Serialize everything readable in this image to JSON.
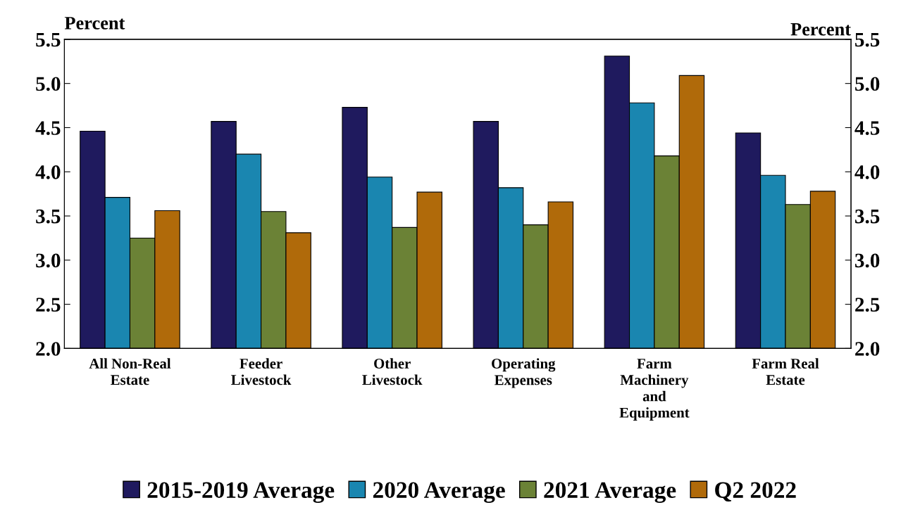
{
  "chart_data": {
    "type": "bar",
    "ylabel": "Percent",
    "y2label": "Percent",
    "categories": [
      "All Non-Real\nEstate",
      "Feeder\nLivestock",
      "Other\nLivestock",
      "Operating\nExpenses",
      "Farm\nMachinery\nand\nEquipment",
      "Farm Real\nEstate"
    ],
    "series": [
      {
        "name": "2015-2019 Average",
        "color": "#1f1a5e",
        "values": [
          4.46,
          4.57,
          4.73,
          4.57,
          5.31,
          4.44
        ]
      },
      {
        "name": "2020 Average",
        "color": "#1a86b0",
        "values": [
          3.71,
          4.2,
          3.94,
          3.82,
          4.78,
          3.96
        ]
      },
      {
        "name": "2021 Average",
        "color": "#6b8236",
        "values": [
          3.25,
          3.55,
          3.37,
          3.4,
          4.18,
          3.63
        ]
      },
      {
        "name": "Q2 2022",
        "color": "#b06a0a",
        "values": [
          3.56,
          3.31,
          3.77,
          3.66,
          5.09,
          3.78
        ]
      }
    ],
    "ylim": [
      2.0,
      5.5
    ],
    "yticks": [
      {
        "value": 2.0,
        "label": "2.0"
      },
      {
        "value": 2.5,
        "label": "2.5"
      },
      {
        "value": 3.0,
        "label": "3.0"
      },
      {
        "value": 3.5,
        "label": "3.5"
      },
      {
        "value": 4.0,
        "label": "4.0"
      },
      {
        "value": 4.5,
        "label": "4.5"
      },
      {
        "value": 5.0,
        "label": "5.0"
      },
      {
        "value": 5.5,
        "label": "5.5"
      }
    ],
    "y2lim": [
      2.0,
      5.5
    ],
    "y2ticks": [
      {
        "value": 2.0,
        "label": "2.0"
      },
      {
        "value": 2.5,
        "label": "2.5"
      },
      {
        "value": 3.0,
        "label": "3.0"
      },
      {
        "value": 3.5,
        "label": "3.5"
      },
      {
        "value": 4.0,
        "label": "4.0"
      },
      {
        "value": 4.5,
        "label": "4.5"
      },
      {
        "value": 5.0,
        "label": "5.0"
      },
      {
        "value": 5.5,
        "label": "5.5"
      }
    ],
    "grid": false,
    "legend": "bottom"
  }
}
